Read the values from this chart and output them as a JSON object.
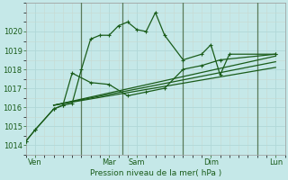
{
  "xlabel": "Pression niveau de la mer( hPa )",
  "background_color": "#c5e8e8",
  "grid_color": "#b0d8d8",
  "line_color": "#1a5c1a",
  "vline_color": "#5a7a5a",
  "ylim": [
    1013.5,
    1021.5
  ],
  "xlim": [
    0,
    14
  ],
  "yticks": [
    1014,
    1015,
    1016,
    1017,
    1018,
    1019,
    1020
  ],
  "xtick_positions": [
    0.5,
    4.5,
    6.0,
    10.0,
    13.5
  ],
  "xtick_labels": [
    "Ven",
    "Mar",
    "Sam",
    "Dim",
    "Lun"
  ],
  "vline_positions": [
    3.0,
    5.2,
    8.5,
    12.5
  ],
  "line1_x": [
    0.0,
    0.5,
    1.5,
    2.0,
    2.5,
    3.0,
    3.5,
    4.0,
    4.5,
    5.0,
    5.5,
    6.0,
    6.5,
    7.0,
    7.5,
    8.5,
    9.5,
    10.0,
    10.5,
    11.0,
    13.5
  ],
  "line1_y": [
    1014.2,
    1014.8,
    1015.9,
    1016.1,
    1016.2,
    1018.0,
    1019.6,
    1019.8,
    1019.8,
    1020.3,
    1020.5,
    1020.1,
    1020.0,
    1021.0,
    1019.8,
    1018.5,
    1018.8,
    1019.3,
    1017.7,
    1018.8,
    1018.8
  ],
  "line2_x": [
    0.0,
    0.5,
    1.5,
    2.0,
    2.5,
    3.5,
    4.5,
    5.5,
    6.5,
    7.5,
    8.5,
    9.5,
    10.5,
    13.5
  ],
  "line2_y": [
    1014.2,
    1014.8,
    1015.9,
    1016.1,
    1017.8,
    1017.3,
    1017.2,
    1016.6,
    1016.8,
    1017.0,
    1018.0,
    1018.2,
    1018.5,
    1018.8
  ],
  "line3_x": [
    1.5,
    13.5
  ],
  "line3_y": [
    1016.1,
    1018.7
  ],
  "line4_x": [
    1.5,
    13.5
  ],
  "line4_y": [
    1016.1,
    1018.4
  ],
  "line5_x": [
    1.5,
    13.5
  ],
  "line5_y": [
    1016.1,
    1018.1
  ]
}
